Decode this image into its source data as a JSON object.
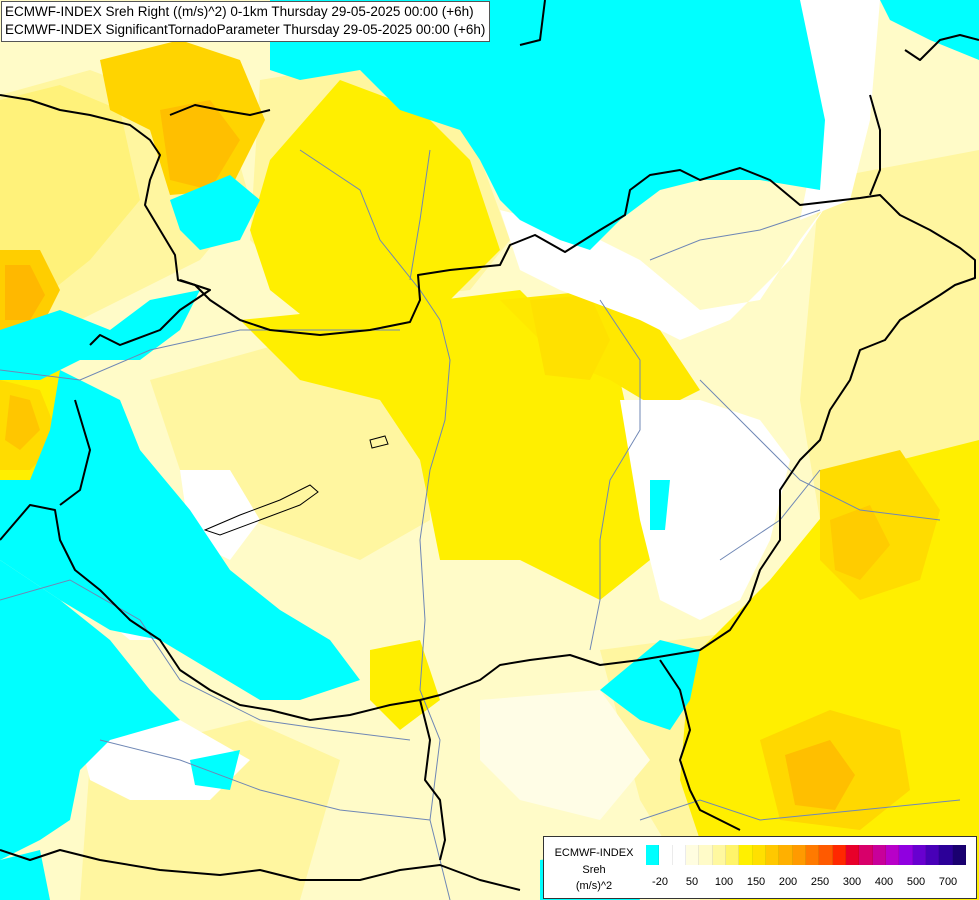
{
  "titles": {
    "line1": "ECMWF-INDEX Sreh Right ((m/s)^2) 0-1km Thursday 29-05-2025 00:00 (+6h)",
    "line2": "ECMWF-INDEX SignificantTornadoParameter Thursday 29-05-2025 00:00 (+6h)"
  },
  "legend": {
    "title": "ECMWF-INDEX",
    "parameter": "Sreh",
    "unit": "(m/s)^2",
    "colors": [
      "#00ffff",
      "#ffffff",
      "#ffffff",
      "#fffde0",
      "#fffbc8",
      "#fff8a0",
      "#fff46a",
      "#fff000",
      "#ffe000",
      "#ffc800",
      "#ffb000",
      "#ff9a00",
      "#ff7a00",
      "#ff5a00",
      "#ff2800",
      "#e8002a",
      "#d8006a",
      "#c8009a",
      "#b800c8",
      "#9000e0",
      "#6800d0",
      "#4800b8",
      "#2c0098",
      "#1a0070"
    ],
    "ticks": [
      "-20",
      "50",
      "100",
      "150",
      "200",
      "250",
      "300",
      "400",
      "500",
      "700"
    ]
  },
  "map": {
    "colors": {
      "cyan": "#00ffff",
      "white": "#ffffff",
      "pale": "#fffbc8",
      "light_yellow": "#fff7a0",
      "yellow": "#ffef00",
      "gold": "#ffd800",
      "orange": "#ffbf00",
      "border": "#000000",
      "river": "#6f87b5"
    }
  }
}
